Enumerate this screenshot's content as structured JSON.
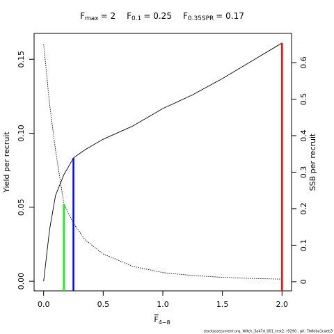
{
  "chart_data": {
    "type": "line",
    "title": [
      {
        "symbol": "F",
        "subscript": "max",
        "text": "= 2"
      },
      {
        "symbol": "F",
        "subscript": "0.1",
        "text": "= 0.25"
      },
      {
        "symbol": "F",
        "subscript": "0.35SPR",
        "text": "= 0.17"
      }
    ],
    "x_label": {
      "symbol": "F",
      "subscript": "4−8"
    },
    "y_label": "Yield per recruit",
    "y2_label": "SSB per recruit",
    "footer": "stockassessment.org, Witch_3a47d_001_test2, r9290 , git: 7b8eba1caeb3",
    "x": [
      0,
      0.05,
      0.1,
      0.17,
      0.25,
      0.35,
      0.5,
      0.75,
      1,
      1.25,
      1.5,
      1.75,
      2
    ],
    "series": [
      {
        "name": "Yield per recruit",
        "color": "#000000",
        "dash": "solid",
        "axis": "y",
        "values": [
          0,
          0.035,
          0.058,
          0.072,
          0.0833,
          0.089,
          0.096,
          0.105,
          0.1167,
          0.126,
          0.137,
          0.149,
          0.161
        ]
      },
      {
        "name": "SSB per recruit",
        "color": "#000000",
        "dash": "dotted",
        "axis": "y2",
        "values": [
          0.65,
          0.486,
          0.36,
          0.213,
          0.16,
          0.114,
          0.076,
          0.042,
          0.025,
          0.017,
          0.012,
          0.009,
          0.007
        ]
      }
    ],
    "reference_lines": [
      {
        "x": 2,
        "value": 0.161,
        "axis": "y",
        "color": "#ff0000"
      },
      {
        "x": 0.25,
        "value": 0.0833,
        "axis": "y",
        "color": "#0000ff"
      },
      {
        "x": 0.17,
        "value": 0.213,
        "axis": "y2",
        "color": "#00ff00"
      }
    ],
    "xlim": [
      -0.08,
      2.08
    ],
    "xticks": [
      {
        "value": 0,
        "label": "0.0"
      },
      {
        "value": 0.5,
        "label": "0.5"
      },
      {
        "value": 1,
        "label": "1.0"
      },
      {
        "value": 1.5,
        "label": "1.5"
      },
      {
        "value": 2,
        "label": "2.0"
      }
    ],
    "ylim": [
      -0.0065,
      0.1675
    ],
    "yticks": [
      {
        "value": 0,
        "label": "0.00"
      },
      {
        "value": 0.05,
        "label": "0.05"
      },
      {
        "value": 0.1,
        "label": "0.10"
      },
      {
        "value": 0.15,
        "label": "0.15"
      }
    ],
    "y2lim": [
      -0.025,
      0.68
    ],
    "y2ticks": [
      0,
      0.1,
      0.2,
      0.3,
      0.4,
      0.5,
      0.6
    ]
  }
}
